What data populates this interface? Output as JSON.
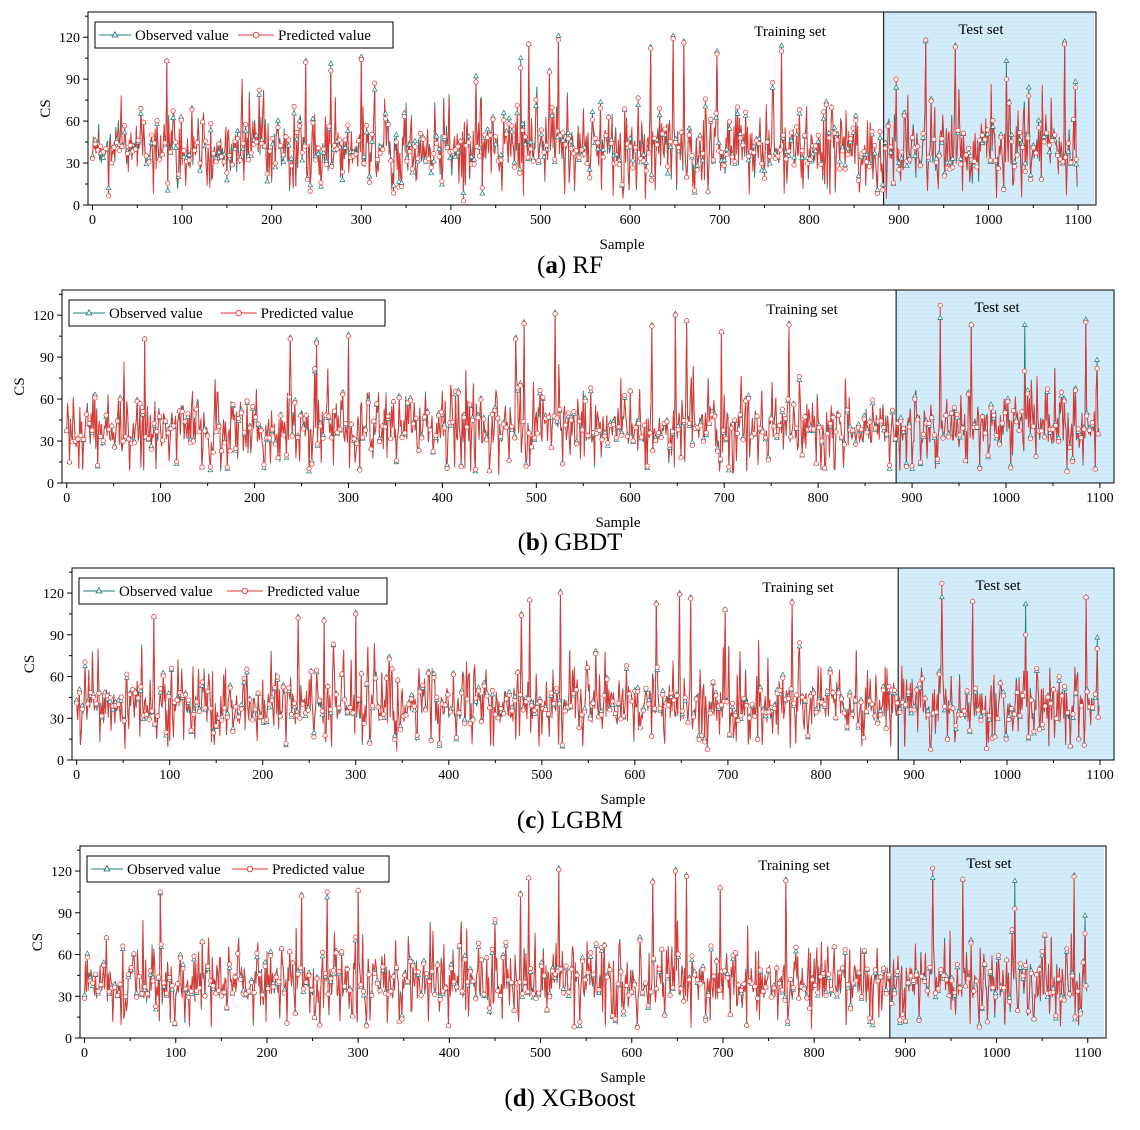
{
  "figure": {
    "note": "Four panels comparing observed and predicted compressive strength (CS) per sample; values below are approximate readings of the plotted series (extreme peaks read from the image, remaining points estimated and generated deterministically).",
    "colors": {
      "observed": "#1f7d7d",
      "predicted": "#e8322d",
      "test_fill": "#d2ecfa",
      "axis": "#000000"
    }
  },
  "chart_data": [
    {
      "type": "line",
      "caption_letter": "a",
      "caption_model": "RF",
      "xlabel": "Sample",
      "ylabel": "CS",
      "xlim": [
        -5,
        1120
      ],
      "ylim": [
        0,
        138
      ],
      "xticks": [
        0,
        100,
        200,
        300,
        400,
        500,
        600,
        700,
        800,
        900,
        1000,
        1100
      ],
      "yticks": [
        0,
        30,
        60,
        90,
        120
      ],
      "split_index": 883,
      "test_end": 1118,
      "region_labels": {
        "train": "Training set",
        "test": "Test set"
      },
      "legend": [
        {
          "name": "Observed value",
          "marker": "triangle"
        },
        {
          "name": "Predicted value",
          "marker": "circle"
        }
      ],
      "series_generation": {
        "count": 1100,
        "seed": 11,
        "noise": 6
      },
      "peaks": [
        {
          "x": 83,
          "observed": 103,
          "predicted": 103
        },
        {
          "x": 238,
          "observed": 103,
          "predicted": 102
        },
        {
          "x": 266,
          "observed": 101,
          "predicted": 96
        },
        {
          "x": 300,
          "observed": 106,
          "predicted": 104
        },
        {
          "x": 428,
          "observed": 92,
          "predicted": 88
        },
        {
          "x": 478,
          "observed": 105,
          "predicted": 98
        },
        {
          "x": 487,
          "observed": 115,
          "predicted": 115
        },
        {
          "x": 510,
          "observed": 96,
          "predicted": 95
        },
        {
          "x": 520,
          "observed": 121,
          "predicted": 118
        },
        {
          "x": 623,
          "observed": 113,
          "predicted": 112
        },
        {
          "x": 648,
          "observed": 121,
          "predicted": 119
        },
        {
          "x": 660,
          "observed": 117,
          "predicted": 116
        },
        {
          "x": 697,
          "observed": 110,
          "predicted": 108
        },
        {
          "x": 769,
          "observed": 114,
          "predicted": 110
        },
        {
          "x": 930,
          "observed": 117,
          "predicted": 118
        },
        {
          "x": 963,
          "observed": 114,
          "predicted": 113
        },
        {
          "x": 1020,
          "observed": 103,
          "predicted": 90
        },
        {
          "x": 1045,
          "observed": 84,
          "predicted": 78
        },
        {
          "x": 1085,
          "observed": 117,
          "predicted": 115
        },
        {
          "x": 1097,
          "observed": 88,
          "predicted": 84
        }
      ]
    },
    {
      "type": "line",
      "caption_letter": "b",
      "caption_model": "GBDT",
      "xlabel": "Sample",
      "ylabel": "CS",
      "xlim": [
        -5,
        1115
      ],
      "ylim": [
        0,
        138
      ],
      "xticks": [
        0,
        100,
        200,
        300,
        400,
        500,
        600,
        700,
        800,
        900,
        1000,
        1100
      ],
      "yticks": [
        0,
        30,
        60,
        90,
        120
      ],
      "split_index": 883,
      "test_end": 1115,
      "region_labels": {
        "train": "Training set",
        "test": "Test set"
      },
      "legend": [
        {
          "name": "Observed value",
          "marker": "triangle"
        },
        {
          "name": "Predicted value",
          "marker": "circle"
        }
      ],
      "series_generation": {
        "count": 1100,
        "seed": 23,
        "noise": 2.5
      },
      "peaks": [
        {
          "x": 83,
          "observed": 103,
          "predicted": 103
        },
        {
          "x": 238,
          "observed": 104,
          "predicted": 103
        },
        {
          "x": 266,
          "observed": 102,
          "predicted": 100
        },
        {
          "x": 300,
          "observed": 106,
          "predicted": 105
        },
        {
          "x": 478,
          "observed": 104,
          "predicted": 103
        },
        {
          "x": 487,
          "observed": 115,
          "predicted": 114
        },
        {
          "x": 520,
          "observed": 122,
          "predicted": 121
        },
        {
          "x": 623,
          "observed": 113,
          "predicted": 112
        },
        {
          "x": 648,
          "observed": 121,
          "predicted": 120
        },
        {
          "x": 660,
          "observed": 116,
          "predicted": 116
        },
        {
          "x": 697,
          "observed": 108,
          "predicted": 108
        },
        {
          "x": 769,
          "observed": 114,
          "predicted": 113
        },
        {
          "x": 930,
          "observed": 118,
          "predicted": 127
        },
        {
          "x": 963,
          "observed": 113,
          "predicted": 113
        },
        {
          "x": 1020,
          "observed": 113,
          "predicted": 80
        },
        {
          "x": 1085,
          "observed": 117,
          "predicted": 115
        },
        {
          "x": 1097,
          "observed": 88,
          "predicted": 82
        }
      ]
    },
    {
      "type": "line",
      "caption_letter": "c",
      "caption_model": "LGBM",
      "xlabel": "Sample",
      "ylabel": "CS",
      "xlim": [
        -5,
        1115
      ],
      "ylim": [
        0,
        138
      ],
      "xticks": [
        0,
        100,
        200,
        300,
        400,
        500,
        600,
        700,
        800,
        900,
        1000,
        1100
      ],
      "yticks": [
        0,
        30,
        60,
        90,
        120
      ],
      "split_index": 883,
      "test_end": 1115,
      "region_labels": {
        "train": "Training set",
        "test": "Test set"
      },
      "legend": [
        {
          "name": "Observed value",
          "marker": "triangle"
        },
        {
          "name": "Predicted value",
          "marker": "circle"
        }
      ],
      "series_generation": {
        "count": 1100,
        "seed": 37,
        "noise": 3
      },
      "peaks": [
        {
          "x": 83,
          "observed": 103,
          "predicted": 103
        },
        {
          "x": 238,
          "observed": 103,
          "predicted": 102
        },
        {
          "x": 266,
          "observed": 101,
          "predicted": 100
        },
        {
          "x": 300,
          "observed": 106,
          "predicted": 105
        },
        {
          "x": 478,
          "observed": 105,
          "predicted": 104
        },
        {
          "x": 487,
          "observed": 115,
          "predicted": 115
        },
        {
          "x": 520,
          "observed": 121,
          "predicted": 120
        },
        {
          "x": 623,
          "observed": 113,
          "predicted": 112
        },
        {
          "x": 648,
          "observed": 120,
          "predicted": 119
        },
        {
          "x": 660,
          "observed": 117,
          "predicted": 116
        },
        {
          "x": 697,
          "observed": 108,
          "predicted": 108
        },
        {
          "x": 769,
          "observed": 114,
          "predicted": 113
        },
        {
          "x": 930,
          "observed": 117,
          "predicted": 127
        },
        {
          "x": 963,
          "observed": 114,
          "predicted": 114
        },
        {
          "x": 1020,
          "observed": 112,
          "predicted": 90
        },
        {
          "x": 1085,
          "observed": 117,
          "predicted": 117
        },
        {
          "x": 1097,
          "observed": 88,
          "predicted": 80
        }
      ]
    },
    {
      "type": "line",
      "caption_letter": "d",
      "caption_model": "XGBoost",
      "xlabel": "Sample",
      "ylabel": "CS",
      "xlim": [
        -5,
        1120
      ],
      "ylim": [
        0,
        138
      ],
      "xticks": [
        0,
        100,
        200,
        300,
        400,
        500,
        600,
        700,
        800,
        900,
        1000,
        1100
      ],
      "yticks": [
        0,
        30,
        60,
        90,
        120
      ],
      "split_index": 883,
      "test_end": 1118,
      "region_labels": {
        "train": "Training set",
        "test": "Test set"
      },
      "legend": [
        {
          "name": "Observed value",
          "marker": "triangle"
        },
        {
          "name": "Predicted value",
          "marker": "circle"
        }
      ],
      "series_generation": {
        "count": 1100,
        "seed": 53,
        "noise": 3
      },
      "peaks": [
        {
          "x": 83,
          "observed": 104,
          "predicted": 105
        },
        {
          "x": 238,
          "observed": 103,
          "predicted": 102
        },
        {
          "x": 266,
          "observed": 101,
          "predicted": 105
        },
        {
          "x": 300,
          "observed": 106,
          "predicted": 106
        },
        {
          "x": 478,
          "observed": 104,
          "predicted": 103
        },
        {
          "x": 487,
          "observed": 115,
          "predicted": 115
        },
        {
          "x": 520,
          "observed": 122,
          "predicted": 121
        },
        {
          "x": 623,
          "observed": 113,
          "predicted": 112
        },
        {
          "x": 648,
          "observed": 121,
          "predicted": 120
        },
        {
          "x": 660,
          "observed": 117,
          "predicted": 116
        },
        {
          "x": 697,
          "observed": 108,
          "predicted": 108
        },
        {
          "x": 769,
          "observed": 114,
          "predicted": 113
        },
        {
          "x": 930,
          "observed": 115,
          "predicted": 122
        },
        {
          "x": 963,
          "observed": 114,
          "predicted": 114
        },
        {
          "x": 1020,
          "observed": 113,
          "predicted": 93
        },
        {
          "x": 1085,
          "observed": 117,
          "predicted": 116
        },
        {
          "x": 1097,
          "observed": 88,
          "predicted": 75
        }
      ]
    }
  ]
}
